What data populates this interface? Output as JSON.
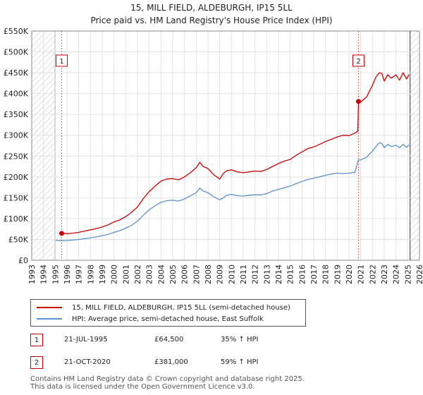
{
  "title_line1": "15, MILL FIELD, ALDEBURGH, IP15 5LL",
  "title_line2": "Price paid vs. HM Land Registry's House Price Index (HPI)",
  "chart_data": {
    "type": "line",
    "x_range": [
      1993,
      2026
    ],
    "ylim": [
      0,
      550000
    ],
    "grid": true,
    "x_ticks": [
      "1993",
      "1994",
      "1995",
      "1996",
      "1997",
      "1998",
      "1999",
      "2000",
      "2001",
      "2002",
      "2003",
      "2004",
      "2005",
      "2006",
      "2007",
      "2008",
      "2009",
      "2010",
      "2011",
      "2012",
      "2013",
      "2014",
      "2015",
      "2016",
      "2017",
      "2018",
      "2019",
      "2020",
      "2021",
      "2022",
      "2023",
      "2024",
      "2025",
      "2026"
    ],
    "y_ticks": [
      {
        "value": 0,
        "label": "£0"
      },
      {
        "value": 50000,
        "label": "£50K"
      },
      {
        "value": 100000,
        "label": "£100K"
      },
      {
        "value": 150000,
        "label": "£150K"
      },
      {
        "value": 200000,
        "label": "£200K"
      },
      {
        "value": 250000,
        "label": "£250K"
      },
      {
        "value": 300000,
        "label": "£300K"
      },
      {
        "value": 350000,
        "label": "£350K"
      },
      {
        "value": 400000,
        "label": "£400K"
      },
      {
        "value": 450000,
        "label": "£450K"
      },
      {
        "value": 500000,
        "label": "£500K"
      },
      {
        "value": 550000,
        "label": "£550K"
      }
    ],
    "hatched_regions": [
      [
        1993,
        1995.0
      ],
      [
        2025.2,
        2026
      ]
    ],
    "series": [
      {
        "name": "15, MILL FIELD, ALDEBURGH, IP15 5LL (semi-detached house)",
        "color": "#cc0000",
        "x": [
          1995.55,
          1996,
          1996.5,
          1997,
          1997.5,
          1998,
          1998.5,
          1999,
          1999.5,
          2000,
          2000.5,
          2001,
          2001.5,
          2002,
          2002.5,
          2003,
          2003.5,
          2004,
          2004.5,
          2005,
          2005.5,
          2006,
          2006.5,
          2007,
          2007.3,
          2007.6,
          2008,
          2008.5,
          2009,
          2009.3,
          2009.6,
          2010,
          2010.5,
          2011,
          2011.5,
          2012,
          2012.5,
          2013,
          2013.5,
          2014,
          2014.5,
          2015,
          2015.5,
          2016,
          2016.5,
          2017,
          2017.5,
          2018,
          2018.5,
          2019,
          2019.5,
          2020,
          2020.5,
          2020.75,
          2020.81,
          2021,
          2021.5,
          2022,
          2022.3,
          2022.6,
          2022.8,
          2023,
          2023.3,
          2023.6,
          2024,
          2024.3,
          2024.6,
          2024.9,
          2025.1
        ],
        "values": [
          64500,
          64000,
          65000,
          67000,
          70000,
          73000,
          76000,
          80000,
          85000,
          92000,
          97000,
          105000,
          115000,
          128000,
          148000,
          165000,
          178000,
          190000,
          195000,
          196000,
          193000,
          200000,
          210000,
          222000,
          235000,
          225000,
          220000,
          205000,
          195000,
          208000,
          215000,
          217000,
          212000,
          210000,
          212000,
          214000,
          213000,
          218000,
          225000,
          232000,
          238000,
          242000,
          252000,
          260000,
          268000,
          272000,
          278000,
          285000,
          290000,
          296000,
          300000,
          299000,
          305000,
          310000,
          381000,
          380000,
          392000,
          420000,
          440000,
          450000,
          448000,
          430000,
          445000,
          437000,
          445000,
          432000,
          450000,
          435000,
          445000
        ]
      },
      {
        "name": "HPI: Average price, semi-detached house, East Suffolk",
        "color": "#5b8fd0",
        "x": [
          1995,
          1995.5,
          1996,
          1996.5,
          1997,
          1997.5,
          1998,
          1998.5,
          1999,
          1999.5,
          2000,
          2000.5,
          2001,
          2001.5,
          2002,
          2002.5,
          2003,
          2003.5,
          2004,
          2004.5,
          2005,
          2005.5,
          2006,
          2006.5,
          2007,
          2007.3,
          2007.6,
          2008,
          2008.5,
          2009,
          2009.3,
          2009.6,
          2010,
          2010.5,
          2011,
          2011.5,
          2012,
          2012.5,
          2013,
          2013.5,
          2014,
          2014.5,
          2015,
          2015.5,
          2016,
          2016.5,
          2017,
          2017.5,
          2018,
          2018.5,
          2019,
          2019.5,
          2020,
          2020.5,
          2020.8,
          2021,
          2021.5,
          2022,
          2022.3,
          2022.6,
          2022.8,
          2023,
          2023.3,
          2023.6,
          2024,
          2024.3,
          2024.6,
          2024.9,
          2025.1
        ],
        "values": [
          48000,
          47000,
          47500,
          48500,
          50000,
          52000,
          54000,
          56000,
          59000,
          62000,
          67000,
          71000,
          77000,
          84000,
          94000,
          108000,
          121000,
          131000,
          139000,
          143000,
          144000,
          142000,
          147000,
          155000,
          162000,
          173000,
          166000,
          162000,
          152000,
          145000,
          150000,
          156000,
          158000,
          155000,
          154000,
          156000,
          157000,
          157000,
          160000,
          166000,
          170000,
          174000,
          178000,
          184000,
          189000,
          194000,
          197000,
          200000,
          204000,
          207000,
          209000,
          208000,
          209000,
          211000,
          240000,
          241000,
          247000,
          262000,
          273000,
          282000,
          280000,
          270000,
          278000,
          273000,
          276000,
          270000,
          278000,
          271000,
          277000
        ]
      }
    ],
    "sales": [
      {
        "label": "1",
        "x": 1995.55,
        "value": 64500
      },
      {
        "label": "2",
        "x": 2020.81,
        "value": 381000
      }
    ]
  },
  "legend": {
    "property_label": "15, MILL FIELD, ALDEBURGH, IP15 5LL (semi-detached house)",
    "hpi_label": "HPI: Average price, semi-detached house, East Suffolk"
  },
  "sales_table": [
    {
      "marker": "1",
      "date": "21-JUL-1995",
      "price": "£64,500",
      "hpi": "35% ↑ HPI"
    },
    {
      "marker": "2",
      "date": "21-OCT-2020",
      "price": "£381,000",
      "hpi": "59% ↑ HPI"
    }
  ],
  "footer": {
    "line1": "Contains HM Land Registry data © Crown copyright and database right 2025.",
    "line2": "This data is licensed under the Open Government Licence v3.0."
  }
}
